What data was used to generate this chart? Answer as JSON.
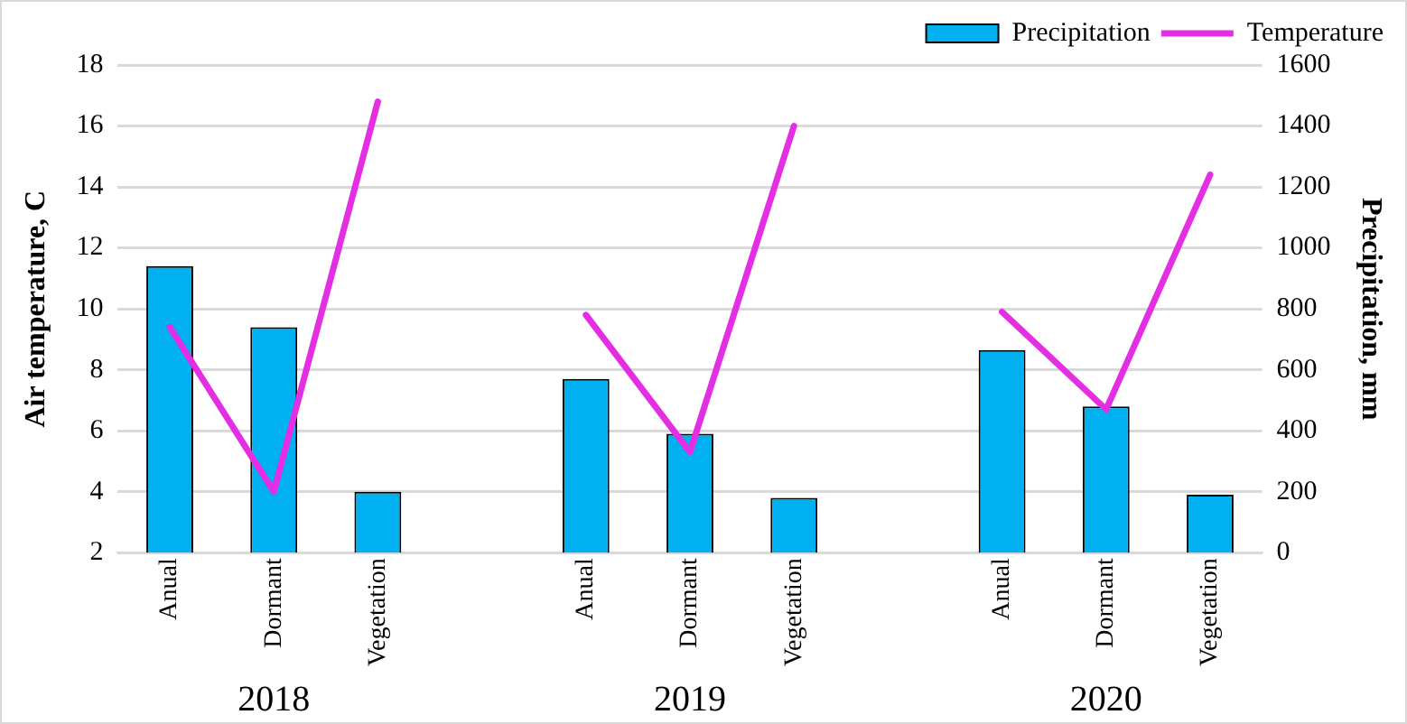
{
  "chart_data": {
    "type": "bar",
    "ylabel": "Air temperature, C",
    "y2label": "Precipitation, mm",
    "categories": [
      "Anual",
      "Dormant",
      "Vegetation",
      null,
      "Anual",
      "Dormant",
      "Vegetation",
      null,
      "Anual",
      "Dormant",
      "Vegetation"
    ],
    "series": [
      {
        "name": "Precipitation",
        "axis": "y2",
        "color": "#00b0f0",
        "values": [
          940,
          740,
          200,
          null,
          570,
          390,
          180,
          null,
          665,
          480,
          190
        ]
      },
      {
        "name": "Temperature",
        "type": "line",
        "axis": "y",
        "color": "#e42ee4",
        "values": [
          9.4,
          4.0,
          16.8,
          null,
          9.8,
          5.3,
          16.0,
          null,
          9.9,
          6.7,
          14.4
        ]
      }
    ],
    "ylim": [
      2,
      18
    ],
    "yticks": [
      2,
      4,
      6,
      8,
      10,
      12,
      14,
      16,
      18
    ],
    "y2lim": [
      0,
      1600
    ],
    "y2ticks": [
      0,
      200,
      400,
      600,
      800,
      1000,
      1200,
      1400,
      1600
    ],
    "grid": "y",
    "legend": "top right",
    "marker": "none",
    "annotations": [
      "2018",
      "2019",
      "2020"
    ]
  }
}
